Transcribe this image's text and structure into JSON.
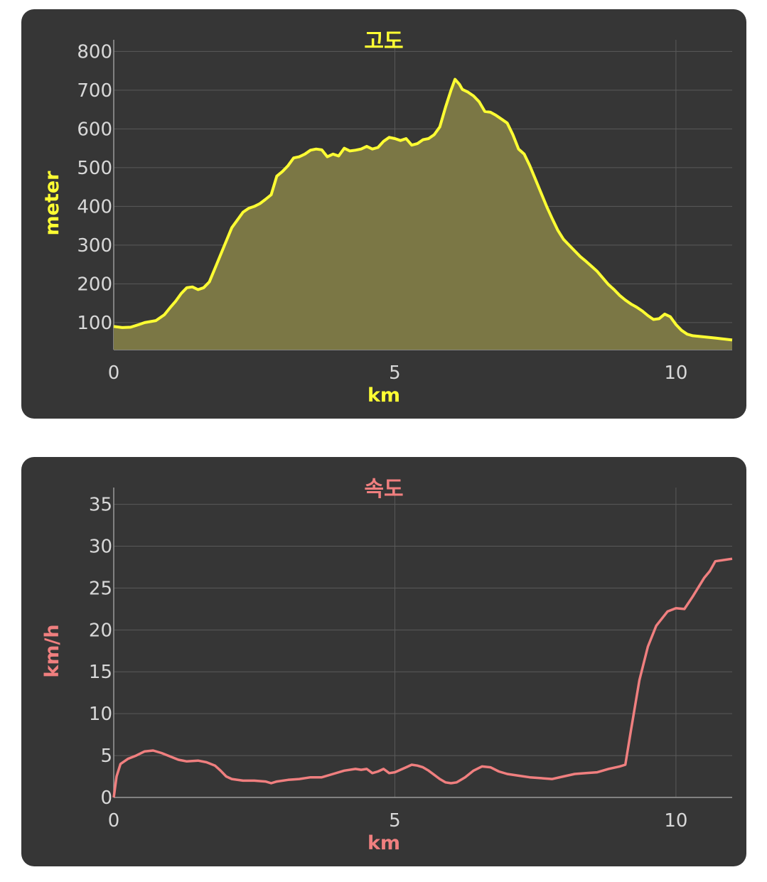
{
  "chart_data": [
    {
      "type": "area",
      "title": "고도",
      "xlabel": "km",
      "ylabel": "meter",
      "xlim": [
        0,
        11
      ],
      "ylim": [
        30,
        830
      ],
      "x_ticks": [
        0,
        5,
        10
      ],
      "y_ticks": [
        100,
        200,
        300,
        400,
        500,
        600,
        700,
        800
      ],
      "grid": true,
      "line_color": "#ffff33",
      "fill_color": "#7b7745",
      "series": [
        {
          "name": "",
          "points": [
            [
              0,
              90
            ],
            [
              0.15,
              87
            ],
            [
              0.3,
              88
            ],
            [
              0.45,
              95
            ],
            [
              0.55,
              100
            ],
            [
              0.75,
              105
            ],
            [
              0.9,
              120
            ],
            [
              1.0,
              138
            ],
            [
              1.1,
              155
            ],
            [
              1.2,
              175
            ],
            [
              1.3,
              190
            ],
            [
              1.4,
              192
            ],
            [
              1.5,
              185
            ],
            [
              1.6,
              190
            ],
            [
              1.7,
              205
            ],
            [
              1.8,
              240
            ],
            [
              1.9,
              275
            ],
            [
              2.0,
              310
            ],
            [
              2.1,
              345
            ],
            [
              2.2,
              365
            ],
            [
              2.3,
              385
            ],
            [
              2.4,
              395
            ],
            [
              2.5,
              400
            ],
            [
              2.6,
              407
            ],
            [
              2.7,
              418
            ],
            [
              2.8,
              430
            ],
            [
              2.9,
              478
            ],
            [
              3.0,
              490
            ],
            [
              3.1,
              505
            ],
            [
              3.2,
              525
            ],
            [
              3.3,
              528
            ],
            [
              3.4,
              535
            ],
            [
              3.5,
              545
            ],
            [
              3.6,
              548
            ],
            [
              3.7,
              546
            ],
            [
              3.8,
              528
            ],
            [
              3.9,
              535
            ],
            [
              4.0,
              530
            ],
            [
              4.1,
              550
            ],
            [
              4.2,
              543
            ],
            [
              4.3,
              545
            ],
            [
              4.4,
              548
            ],
            [
              4.5,
              555
            ],
            [
              4.6,
              548
            ],
            [
              4.7,
              552
            ],
            [
              4.8,
              568
            ],
            [
              4.9,
              578
            ],
            [
              5.0,
              575
            ],
            [
              5.1,
              570
            ],
            [
              5.2,
              575
            ],
            [
              5.3,
              558
            ],
            [
              5.4,
              562
            ],
            [
              5.5,
              572
            ],
            [
              5.6,
              575
            ],
            [
              5.7,
              585
            ],
            [
              5.8,
              605
            ],
            [
              5.9,
              655
            ],
            [
              6.0,
              700
            ],
            [
              6.07,
              728
            ],
            [
              6.15,
              715
            ],
            [
              6.2,
              702
            ],
            [
              6.3,
              695
            ],
            [
              6.4,
              685
            ],
            [
              6.5,
              670
            ],
            [
              6.6,
              645
            ],
            [
              6.7,
              643
            ],
            [
              6.8,
              635
            ],
            [
              6.9,
              625
            ],
            [
              7.0,
              615
            ],
            [
              7.1,
              585
            ],
            [
              7.2,
              548
            ],
            [
              7.3,
              535
            ],
            [
              7.4,
              505
            ],
            [
              7.5,
              470
            ],
            [
              7.6,
              435
            ],
            [
              7.7,
              400
            ],
            [
              7.8,
              368
            ],
            [
              7.9,
              338
            ],
            [
              8.0,
              315
            ],
            [
              8.1,
              300
            ],
            [
              8.2,
              285
            ],
            [
              8.3,
              270
            ],
            [
              8.4,
              258
            ],
            [
              8.5,
              245
            ],
            [
              8.6,
              232
            ],
            [
              8.7,
              215
            ],
            [
              8.8,
              198
            ],
            [
              8.9,
              185
            ],
            [
              9.0,
              170
            ],
            [
              9.1,
              158
            ],
            [
              9.2,
              148
            ],
            [
              9.3,
              140
            ],
            [
              9.4,
              130
            ],
            [
              9.5,
              118
            ],
            [
              9.6,
              108
            ],
            [
              9.7,
              110
            ],
            [
              9.8,
              122
            ],
            [
              9.9,
              115
            ],
            [
              10.0,
              95
            ],
            [
              10.1,
              80
            ],
            [
              10.2,
              70
            ],
            [
              10.3,
              66
            ],
            [
              10.5,
              63
            ],
            [
              10.7,
              60
            ],
            [
              11.0,
              55
            ]
          ]
        }
      ]
    },
    {
      "type": "line",
      "title": "속도",
      "xlabel": "km",
      "ylabel": "km/h",
      "xlim": [
        0,
        11
      ],
      "ylim": [
        0,
        37
      ],
      "x_ticks": [
        0,
        5,
        10
      ],
      "y_ticks": [
        0,
        5,
        10,
        15,
        20,
        25,
        30,
        35
      ],
      "grid": true,
      "line_color": "#f07f7f",
      "series": [
        {
          "name": "",
          "points": [
            [
              0,
              0
            ],
            [
              0.05,
              2.5
            ],
            [
              0.12,
              4
            ],
            [
              0.25,
              4.6
            ],
            [
              0.4,
              5
            ],
            [
              0.55,
              5.5
            ],
            [
              0.7,
              5.6
            ],
            [
              0.85,
              5.3
            ],
            [
              1.0,
              4.9
            ],
            [
              1.15,
              4.5
            ],
            [
              1.3,
              4.3
            ],
            [
              1.5,
              4.4
            ],
            [
              1.65,
              4.2
            ],
            [
              1.8,
              3.8
            ],
            [
              1.9,
              3.2
            ],
            [
              2.0,
              2.5
            ],
            [
              2.1,
              2.2
            ],
            [
              2.3,
              2.0
            ],
            [
              2.5,
              2.0
            ],
            [
              2.7,
              1.9
            ],
            [
              2.8,
              1.7
            ],
            [
              2.9,
              1.9
            ],
            [
              3.1,
              2.1
            ],
            [
              3.3,
              2.2
            ],
            [
              3.5,
              2.4
            ],
            [
              3.7,
              2.4
            ],
            [
              3.9,
              2.8
            ],
            [
              4.1,
              3.2
            ],
            [
              4.3,
              3.4
            ],
            [
              4.4,
              3.3
            ],
            [
              4.5,
              3.4
            ],
            [
              4.6,
              2.9
            ],
            [
              4.7,
              3.1
            ],
            [
              4.8,
              3.4
            ],
            [
              4.9,
              2.9
            ],
            [
              5.0,
              3.0
            ],
            [
              5.1,
              3.3
            ],
            [
              5.2,
              3.6
            ],
            [
              5.3,
              3.9
            ],
            [
              5.4,
              3.8
            ],
            [
              5.5,
              3.6
            ],
            [
              5.6,
              3.2
            ],
            [
              5.7,
              2.7
            ],
            [
              5.8,
              2.2
            ],
            [
              5.9,
              1.8
            ],
            [
              6.0,
              1.7
            ],
            [
              6.1,
              1.8
            ],
            [
              6.25,
              2.4
            ],
            [
              6.4,
              3.2
            ],
            [
              6.55,
              3.7
            ],
            [
              6.7,
              3.6
            ],
            [
              6.85,
              3.1
            ],
            [
              7.0,
              2.8
            ],
            [
              7.2,
              2.6
            ],
            [
              7.4,
              2.4
            ],
            [
              7.6,
              2.3
            ],
            [
              7.8,
              2.2
            ],
            [
              8.0,
              2.5
            ],
            [
              8.2,
              2.8
            ],
            [
              8.4,
              2.9
            ],
            [
              8.6,
              3.0
            ],
            [
              8.8,
              3.4
            ],
            [
              9.0,
              3.7
            ],
            [
              9.1,
              3.9
            ],
            [
              9.2,
              8
            ],
            [
              9.35,
              14
            ],
            [
              9.5,
              18
            ],
            [
              9.65,
              20.5
            ],
            [
              9.85,
              22.2
            ],
            [
              10.0,
              22.6
            ],
            [
              10.15,
              22.5
            ],
            [
              10.3,
              24
            ],
            [
              10.5,
              26.2
            ],
            [
              10.6,
              27
            ],
            [
              10.7,
              28.2
            ],
            [
              11.0,
              28.5
            ]
          ]
        }
      ]
    }
  ]
}
